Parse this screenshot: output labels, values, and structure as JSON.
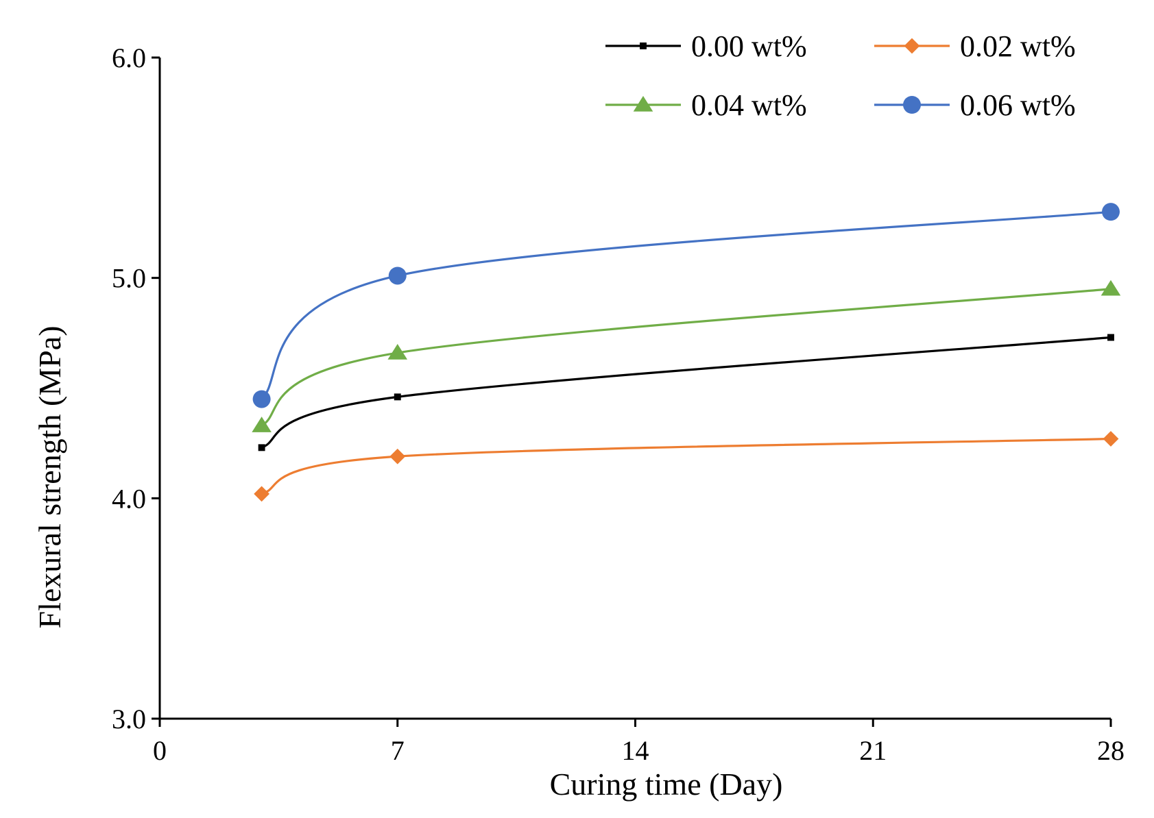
{
  "chart_data": {
    "type": "line",
    "title": "",
    "xlabel": "Curing time (Day)",
    "ylabel": "Flexural strength (MPa)",
    "xlim": [
      0,
      28
    ],
    "ylim": [
      3.0,
      6.0
    ],
    "x_ticks": [
      0,
      7,
      14,
      21,
      28
    ],
    "x_tick_labels": [
      "0",
      "7",
      "14",
      "21",
      "28"
    ],
    "y_ticks": [
      3.0,
      4.0,
      5.0,
      6.0
    ],
    "y_tick_labels": [
      "3.0",
      "4.0",
      "5.0",
      "6.0"
    ],
    "grid": false,
    "legend_position": "top-right",
    "x": [
      3,
      7,
      28
    ],
    "series": [
      {
        "name": "0.00 wt%",
        "values": [
          4.23,
          4.46,
          4.73
        ],
        "color": "#000000",
        "marker": "square"
      },
      {
        "name": "0.02 wt%",
        "values": [
          4.02,
          4.19,
          4.27
        ],
        "color": "#ED7D31",
        "marker": "diamond"
      },
      {
        "name": "0.04 wt%",
        "values": [
          4.33,
          4.66,
          4.95
        ],
        "color": "#70AD47",
        "marker": "triangle"
      },
      {
        "name": "0.06 wt%",
        "values": [
          4.45,
          5.01,
          5.3
        ],
        "color": "#4472C4",
        "marker": "circle"
      }
    ]
  }
}
